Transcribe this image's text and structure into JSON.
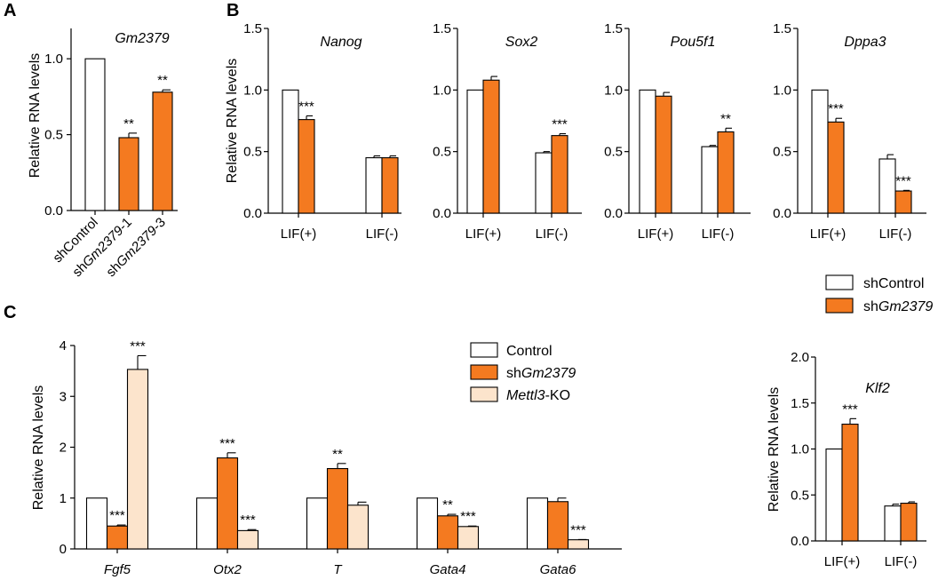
{
  "panel_labels": [
    "A",
    "B",
    "C"
  ],
  "legend_b": [
    {
      "prefix": "shControl",
      "italic": "",
      "color": "#ffffff"
    },
    {
      "prefix": "sh",
      "italic": "Gm2379",
      "color": "#f47a20"
    }
  ],
  "legend_c": [
    {
      "prefix": "Control",
      "italic": "",
      "suffix": "",
      "color": "#ffffff"
    },
    {
      "prefix": "sh",
      "italic": "Gm2379",
      "suffix": "",
      "color": "#f47a20"
    },
    {
      "prefix": "",
      "italic": "Mettl3",
      "suffix": "-KO",
      "color": "#fce4cc"
    }
  ],
  "chart_data": [
    {
      "id": "A",
      "type": "bar",
      "title": "Gm2379",
      "ylabel": "Relative RNA levels",
      "ylim": [
        0,
        1.2
      ],
      "yticks": [
        "0.0",
        "0.5",
        "1.0"
      ],
      "ytick_values": [
        0,
        0.5,
        1.0
      ],
      "categories": [
        {
          "prefix": "sh",
          "italic": "",
          "suffix": "Control"
        },
        {
          "prefix": "sh",
          "italic": "Gm2379",
          "suffix": "-1"
        },
        {
          "prefix": "sh",
          "italic": "Gm2379",
          "suffix": "-3"
        }
      ],
      "bars": [
        {
          "value": 1.0,
          "error": 0,
          "color": "#ffffff",
          "sig": ""
        },
        {
          "value": 0.48,
          "error": 0.03,
          "color": "#f47a20",
          "sig": "**"
        },
        {
          "value": 0.78,
          "error": 0.015,
          "color": "#f47a20",
          "sig": "**"
        }
      ]
    },
    {
      "id": "B1",
      "type": "bar",
      "title": "Nanog",
      "ylabel": "Relative RNA levels",
      "ylim": [
        0,
        1.5
      ],
      "yticks": [
        "0.0",
        "0.5",
        "1.0",
        "1.5"
      ],
      "ytick_values": [
        0,
        0.5,
        1.0,
        1.5
      ],
      "groups": [
        "LIF(+)",
        "LIF(-)"
      ],
      "series": [
        {
          "name": "shControl",
          "color": "#ffffff",
          "values": [
            1.0,
            0.45
          ],
          "errors": [
            0,
            0.015
          ],
          "sig": [
            "",
            ""
          ]
        },
        {
          "name": "shGm2379",
          "color": "#f47a20",
          "values": [
            0.76,
            0.45
          ],
          "errors": [
            0.03,
            0.015
          ],
          "sig": [
            "***",
            ""
          ]
        }
      ]
    },
    {
      "id": "B2",
      "type": "bar",
      "title": "Sox2",
      "ylabel": "",
      "ylim": [
        0,
        1.5
      ],
      "yticks": [
        "0.0",
        "0.5",
        "1.0",
        "1.5"
      ],
      "ytick_values": [
        0,
        0.5,
        1.0,
        1.5
      ],
      "groups": [
        "LIF(+)",
        "LIF(-)"
      ],
      "series": [
        {
          "name": "shControl",
          "color": "#ffffff",
          "values": [
            1.0,
            0.49
          ],
          "errors": [
            0,
            0.01
          ],
          "sig": [
            "",
            ""
          ]
        },
        {
          "name": "shGm2379",
          "color": "#f47a20",
          "values": [
            1.08,
            0.63
          ],
          "errors": [
            0.03,
            0.015
          ],
          "sig": [
            "",
            "***"
          ]
        }
      ]
    },
    {
      "id": "B3",
      "type": "bar",
      "title": "Pou5f1",
      "ylabel": "",
      "ylim": [
        0,
        1.5
      ],
      "yticks": [
        "0.0",
        "0.5",
        "1.0",
        "1.5"
      ],
      "ytick_values": [
        0,
        0.5,
        1.0,
        1.5
      ],
      "groups": [
        "LIF(+)",
        "LIF(-)"
      ],
      "series": [
        {
          "name": "shControl",
          "color": "#ffffff",
          "values": [
            1.0,
            0.54
          ],
          "errors": [
            0,
            0.01
          ],
          "sig": [
            "",
            ""
          ]
        },
        {
          "name": "shGm2379",
          "color": "#f47a20",
          "values": [
            0.95,
            0.66
          ],
          "errors": [
            0.03,
            0.03
          ],
          "sig": [
            "",
            "**"
          ]
        }
      ]
    },
    {
      "id": "B4",
      "type": "bar",
      "title": "Dppa3",
      "ylabel": "",
      "ylim": [
        0,
        1.5
      ],
      "yticks": [
        "0.0",
        "0.5",
        "1.0",
        "1.5"
      ],
      "ytick_values": [
        0,
        0.5,
        1.0,
        1.5
      ],
      "groups": [
        "LIF(+)",
        "LIF(-)"
      ],
      "series": [
        {
          "name": "shControl",
          "color": "#ffffff",
          "values": [
            1.0,
            0.44
          ],
          "errors": [
            0,
            0.035
          ],
          "sig": [
            "",
            ""
          ]
        },
        {
          "name": "shGm2379",
          "color": "#f47a20",
          "values": [
            0.74,
            0.18
          ],
          "errors": [
            0.03,
            0.005
          ],
          "sig": [
            "***",
            "***"
          ]
        }
      ]
    },
    {
      "id": "C1",
      "type": "bar",
      "title": "",
      "ylabel": "Relative RNA levels",
      "ylim": [
        0,
        4
      ],
      "yticks": [
        "0",
        "1",
        "2",
        "3",
        "4"
      ],
      "ytick_values": [
        0,
        1,
        2,
        3,
        4
      ],
      "groups": [
        "Fgf5",
        "Otx2",
        "T",
        "Gata4",
        "Gata6"
      ],
      "groups_italic": true,
      "series": [
        {
          "name": "Control",
          "color": "#ffffff",
          "values": [
            1.0,
            1.0,
            1.0,
            1.0,
            1.0
          ],
          "errors": [
            0,
            0,
            0,
            0,
            0
          ],
          "sig": [
            "",
            "",
            "",
            "",
            ""
          ]
        },
        {
          "name": "shGm2379",
          "color": "#f47a20",
          "values": [
            0.45,
            1.79,
            1.58,
            0.65,
            0.93
          ],
          "errors": [
            0.02,
            0.1,
            0.1,
            0.03,
            0.07
          ],
          "sig": [
            "***",
            "***",
            "**",
            "**",
            ""
          ]
        },
        {
          "name": "Mettl3-KO",
          "color": "#fce4cc",
          "values": [
            3.53,
            0.36,
            0.86,
            0.44,
            0.18
          ],
          "errors": [
            0.27,
            0.02,
            0.06,
            0.01,
            0.005
          ],
          "sig": [
            "***",
            "***",
            "",
            "***",
            "***"
          ]
        }
      ]
    },
    {
      "id": "C2",
      "type": "bar",
      "title": "Klf2",
      "ylabel": "Relative RNA levels",
      "ylim": [
        0,
        2.0
      ],
      "yticks": [
        "0.0",
        "0.5",
        "1.0",
        "1.5",
        "2.0"
      ],
      "ytick_values": [
        0,
        0.5,
        1.0,
        1.5,
        2.0
      ],
      "groups": [
        "LIF(+)",
        "LIF(-)"
      ],
      "series": [
        {
          "name": "shControl",
          "color": "#ffffff",
          "values": [
            1.0,
            0.38
          ],
          "errors": [
            0,
            0.02
          ],
          "sig": [
            "",
            ""
          ]
        },
        {
          "name": "shGm2379",
          "color": "#f47a20",
          "values": [
            1.27,
            0.41
          ],
          "errors": [
            0.06,
            0.015
          ],
          "sig": [
            "***",
            ""
          ]
        }
      ]
    }
  ]
}
